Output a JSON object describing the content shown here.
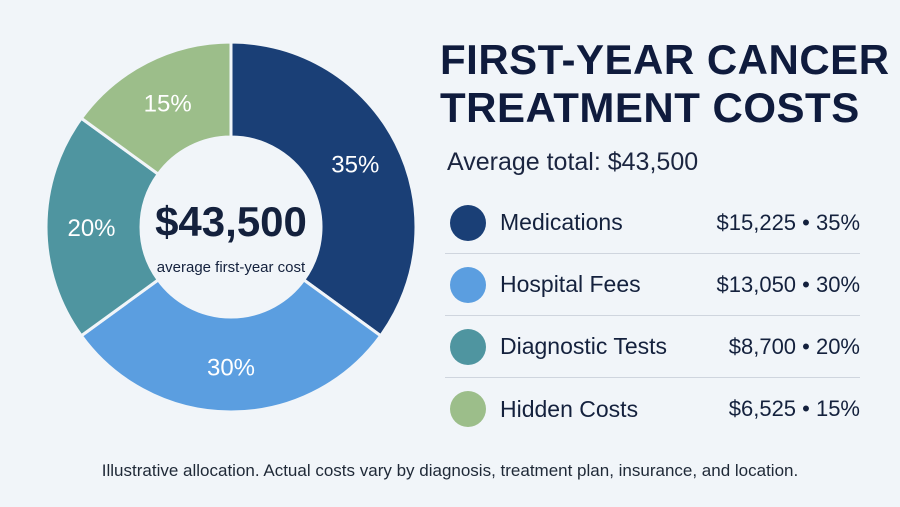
{
  "title_line1": "FIRST-YEAR CANCER",
  "title_line2": "TREATMENT COSTS",
  "subtitle": "Average total: $43,500",
  "center_value": "$43,500",
  "center_caption": "average first-year cost",
  "footnote": "Illustrative allocation. Actual costs vary by diagnosis, treatment plan, insurance, and location.",
  "legend": [
    {
      "label": "Medications",
      "value_text": "$15,225 • 35%",
      "color": "#1a3f76"
    },
    {
      "label": "Hospital Fees",
      "value_text": "$13,050 • 30%",
      "color": "#5b9ee0"
    },
    {
      "label": "Diagnostic Tests",
      "value_text": "$8,700 • 20%",
      "color": "#4f95a0"
    },
    {
      "label": "Hidden Costs",
      "value_text": "$6,525 • 15%",
      "color": "#9cbe8a"
    }
  ],
  "chart_data": {
    "type": "pie",
    "donut": true,
    "title": "FIRST-YEAR CANCER TREATMENT COSTS",
    "subtitle": "Average total: $43,500",
    "total": 43500,
    "categories": [
      "Medications",
      "Hospital Fees",
      "Diagnostic Tests",
      "Hidden Costs"
    ],
    "values": [
      15225,
      13050,
      8700,
      6525
    ],
    "percent_labels": [
      "35%",
      "30%",
      "20%",
      "15%"
    ],
    "colors": [
      "#1a3f76",
      "#5b9ee0",
      "#4f95a0",
      "#9cbe8a"
    ],
    "legend_position": "right"
  }
}
